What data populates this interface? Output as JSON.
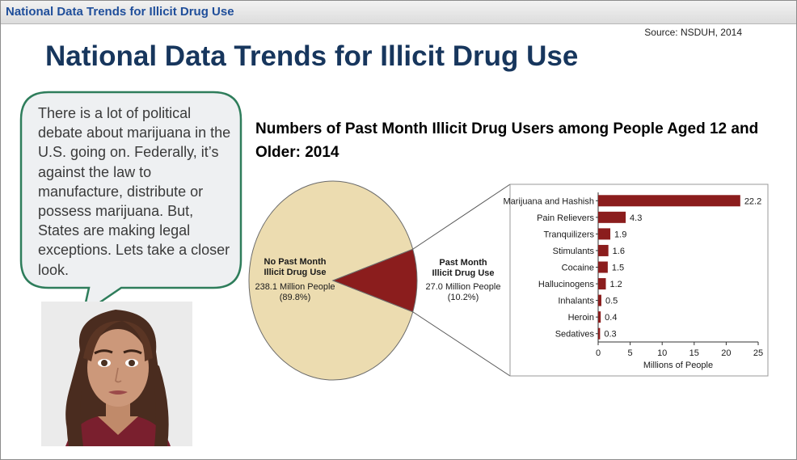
{
  "titlebar": {
    "title": "National Data Trends for Illicit Drug Use"
  },
  "source": "Source: NSDUH, 2014",
  "heading": "National Data Trends for Illicit Drug Use",
  "bubble": {
    "text": "There is a lot of political debate about marijuana in the U.S. going on. Federally, it’s against the law to manufacture, distribute or possess marijuana. But, States are making legal exceptions. Lets take a closer look."
  },
  "colors": {
    "pie_no_use": "#ecdcb0",
    "pie_use": "#8b1d1d",
    "bar": "#8b1d1d",
    "title_blue": "#17365d",
    "bubble_border": "#2e7d5b"
  },
  "chart_data": [
    {
      "type": "pie",
      "title": "Numbers of Past Month Illicit Drug Users among People Aged 12 and Older: 2014",
      "slices": [
        {
          "label_lines": [
            "No Past Month",
            "Illicit Drug Use"
          ],
          "value_text": "238.1 Million People",
          "percent_text": "(89.8%)",
          "value": 238.1,
          "percent": 89.8
        },
        {
          "label_lines": [
            "Past Month",
            "Illicit Drug Use"
          ],
          "value_text": "27.0 Million People",
          "percent_text": "(10.2%)",
          "value": 27.0,
          "percent": 10.2
        }
      ]
    },
    {
      "type": "bar",
      "orientation": "horizontal",
      "categories": [
        "Marijuana and Hashish",
        "Pain Relievers",
        "Tranquilizers",
        "Stimulants",
        "Cocaine",
        "Hallucinogens",
        "Inhalants",
        "Heroin",
        "Sedatives"
      ],
      "values": [
        22.2,
        4.3,
        1.9,
        1.6,
        1.5,
        1.2,
        0.5,
        0.4,
        0.3
      ],
      "xlabel": "Millions of People",
      "xlim": [
        0,
        25
      ],
      "xticks": [
        0,
        5,
        10,
        15,
        20,
        25
      ],
      "grid": false
    }
  ]
}
